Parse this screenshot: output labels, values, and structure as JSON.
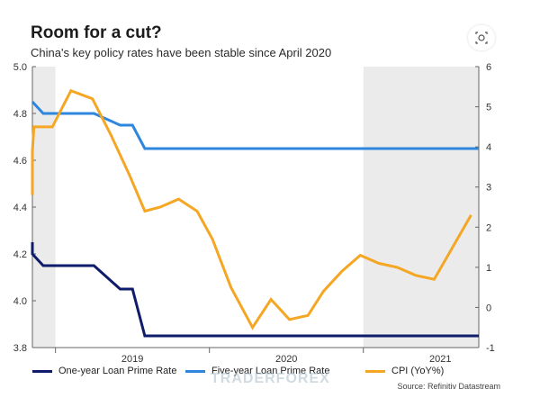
{
  "title": "Room for a cut?",
  "subtitle": "China's key policy rates have been stable since April 2020",
  "source": "Source: Refinitiv Datastream",
  "watermark": "TRADERFOREX",
  "colors": {
    "one_year": "#0f1c6b",
    "five_year": "#2e86de",
    "cpi": "#f5a623",
    "shade": "#ebebeb",
    "axis": "#666666"
  },
  "icons": [
    "lens-icon"
  ],
  "chart_data": {
    "type": "line",
    "title": "",
    "x_range": [
      2018.85,
      2021.75
    ],
    "x_ticks": [
      {
        "x": 2019.5,
        "label": "2019"
      },
      {
        "x": 2020.5,
        "label": "2020"
      },
      {
        "x": 2021.5,
        "label": "2021"
      }
    ],
    "year_boundaries": [
      2019.0,
      2020.0,
      2021.0
    ],
    "shaded_ranges": [
      [
        2018.85,
        2019.0
      ],
      [
        2021.0,
        2021.75
      ]
    ],
    "y_left": {
      "min": 3.8,
      "max": 5.0,
      "ticks": [
        "3.8",
        "4.0",
        "4.2",
        "4.4",
        "4.6",
        "4.8",
        "5.0"
      ]
    },
    "y_right": {
      "min": -1,
      "max": 6,
      "ticks": [
        "-1",
        "0",
        "1",
        "2",
        "3",
        "4",
        "5",
        "6"
      ]
    },
    "series": [
      {
        "name": "One-year Loan Prime Rate",
        "axis": "left",
        "color_key": "one_year",
        "x": [
          2018.58,
          2018.67,
          2018.75,
          2018.83,
          2018.92,
          2019.0,
          2019.08,
          2019.17,
          2019.25,
          2019.42,
          2019.5,
          2019.58,
          2021.75
        ],
        "values": [
          4.25,
          4.2,
          4.2,
          4.2,
          4.15,
          4.15,
          4.15,
          4.15,
          4.15,
          4.05,
          4.05,
          3.85,
          3.85
        ]
      },
      {
        "name": "Five-year Loan Prime Rate",
        "axis": "left",
        "color_key": "five_year",
        "x": [
          2018.58,
          2018.67,
          2018.75,
          2018.83,
          2018.92,
          2019.0,
          2019.08,
          2019.17,
          2019.25,
          2019.42,
          2019.5,
          2019.58,
          2021.75
        ],
        "values": [
          4.85,
          4.85,
          4.85,
          4.85,
          4.8,
          4.8,
          4.8,
          4.8,
          4.8,
          4.75,
          4.75,
          4.65,
          4.65
        ]
      },
      {
        "name": "CPI (YoY%)",
        "axis": "right",
        "color_key": "cpi",
        "x": [
          2018.52,
          2018.62,
          2018.74,
          2018.86,
          2018.98,
          2019.1,
          2019.24,
          2019.36,
          2019.48,
          2019.58,
          2019.68,
          2019.8,
          2019.92,
          2020.02,
          2020.14,
          2020.28,
          2020.4,
          2020.52,
          2020.64,
          2020.74,
          2020.86,
          2020.98,
          2021.1,
          2021.22,
          2021.34,
          2021.46,
          2021.58,
          2021.7
        ],
        "values": [
          2.8,
          3.0,
          3.9,
          4.5,
          4.5,
          5.4,
          5.2,
          4.3,
          3.3,
          2.4,
          2.5,
          2.7,
          2.4,
          1.7,
          0.5,
          -0.5,
          0.2,
          -0.3,
          -0.2,
          0.4,
          0.9,
          1.3,
          1.1,
          1.0,
          0.8,
          0.7,
          1.5,
          2.3
        ]
      }
    ],
    "legend_position": "bottom",
    "grid": false
  }
}
